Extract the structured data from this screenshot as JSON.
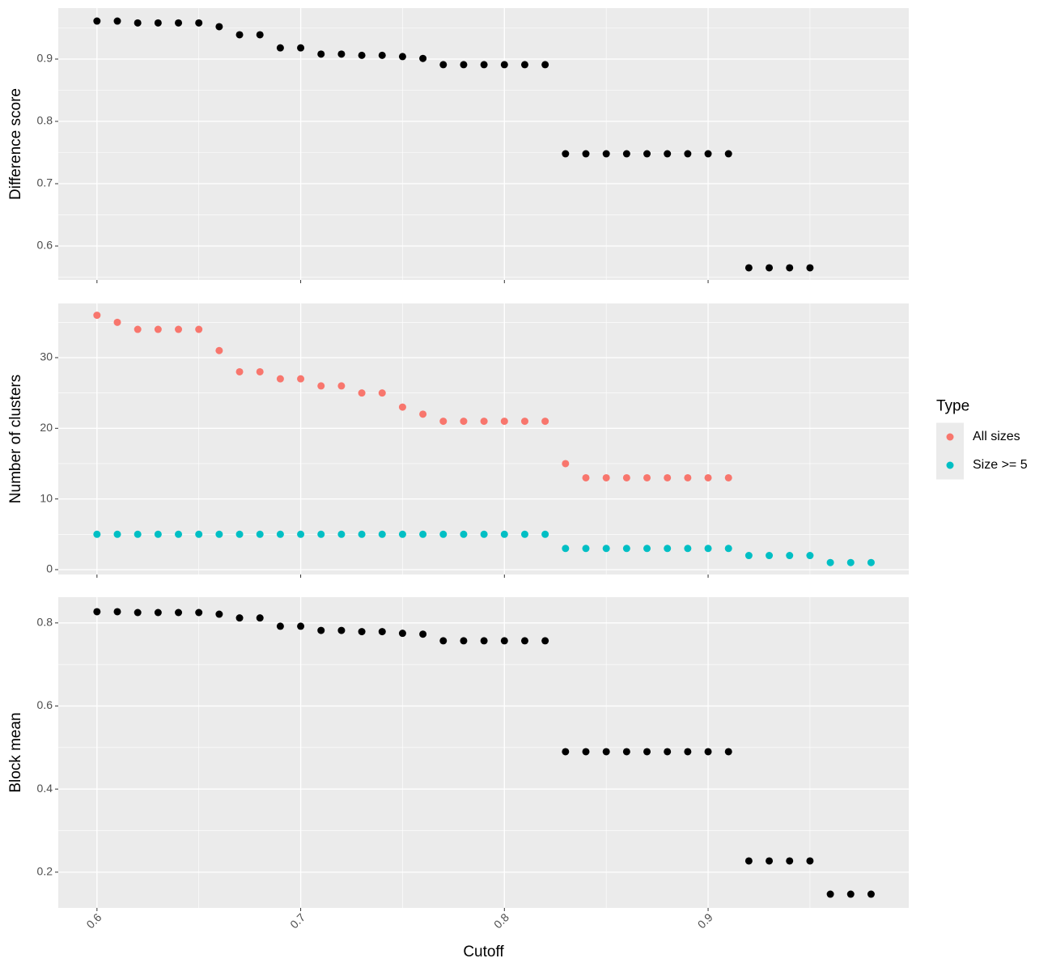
{
  "chart_data": [
    {
      "type": "scatter",
      "ylabel": "Difference score",
      "x": [
        0.6,
        0.61,
        0.62,
        0.63,
        0.64,
        0.65,
        0.66,
        0.67,
        0.68,
        0.69,
        0.7,
        0.71,
        0.72,
        0.73,
        0.74,
        0.75,
        0.76,
        0.77,
        0.78,
        0.79,
        0.8,
        0.81,
        0.82,
        0.83,
        0.84,
        0.85,
        0.86,
        0.87,
        0.88,
        0.89,
        0.9,
        0.91,
        0.92,
        0.93,
        0.94,
        0.95,
        0.96,
        0.97,
        0.98
      ],
      "series": [
        {
          "color": "#000000",
          "values": [
            0.961,
            0.961,
            0.958,
            0.958,
            0.958,
            0.958,
            0.952,
            0.939,
            0.939,
            0.918,
            0.918,
            0.908,
            0.908,
            0.906,
            0.906,
            0.904,
            0.901,
            0.891,
            0.891,
            0.891,
            0.891,
            0.891,
            0.891,
            0.748,
            0.748,
            0.748,
            0.748,
            0.748,
            0.748,
            0.748,
            0.748,
            0.748,
            0.565,
            0.565,
            0.565,
            0.565,
            null,
            null,
            null
          ]
        }
      ],
      "xlim": [
        0.581,
        0.9985
      ],
      "xticks": [
        0.6,
        0.7,
        0.8,
        0.9
      ],
      "ylim": [
        0.5455,
        0.9818
      ],
      "yticks": [
        0.6,
        0.7,
        0.8,
        0.9
      ],
      "grid": true
    },
    {
      "type": "scatter",
      "ylabel": "Number of clusters",
      "legend_title": "Type",
      "legend": "right",
      "x": [
        0.6,
        0.61,
        0.62,
        0.63,
        0.64,
        0.65,
        0.66,
        0.67,
        0.68,
        0.69,
        0.7,
        0.71,
        0.72,
        0.73,
        0.74,
        0.75,
        0.76,
        0.77,
        0.78,
        0.79,
        0.8,
        0.81,
        0.82,
        0.83,
        0.84,
        0.85,
        0.86,
        0.87,
        0.88,
        0.89,
        0.9,
        0.91,
        0.92,
        0.93,
        0.94,
        0.95,
        0.96,
        0.97,
        0.98
      ],
      "series": [
        {
          "name": "All sizes",
          "color": "#f8766d",
          "values": [
            36,
            35,
            34,
            34,
            34,
            34,
            31,
            28,
            28,
            27,
            27,
            26,
            26,
            25,
            25,
            23,
            22,
            21,
            21,
            21,
            21,
            21,
            21,
            15,
            13,
            13,
            13,
            13,
            13,
            13,
            13,
            13,
            null,
            null,
            null,
            null,
            null,
            null,
            null
          ]
        },
        {
          "name": "Size >= 5",
          "color": "#00bfc4",
          "values": [
            5,
            5,
            5,
            5,
            5,
            5,
            5,
            5,
            5,
            5,
            5,
            5,
            5,
            5,
            5,
            5,
            5,
            5,
            5,
            5,
            5,
            5,
            5,
            3,
            3,
            3,
            3,
            3,
            3,
            3,
            3,
            3,
            2,
            2,
            2,
            2,
            1,
            1,
            1
          ]
        }
      ],
      "xlim": [
        0.581,
        0.9985
      ],
      "xticks": [
        0.6,
        0.7,
        0.8,
        0.9
      ],
      "ylim": [
        -0.69,
        37.67
      ],
      "yticks": [
        0,
        10,
        20,
        30
      ],
      "grid": true
    },
    {
      "type": "scatter",
      "ylabel": "Block mean",
      "xlabel": "Cutoff",
      "x": [
        0.6,
        0.61,
        0.62,
        0.63,
        0.64,
        0.65,
        0.66,
        0.67,
        0.68,
        0.69,
        0.7,
        0.71,
        0.72,
        0.73,
        0.74,
        0.75,
        0.76,
        0.77,
        0.78,
        0.79,
        0.8,
        0.81,
        0.82,
        0.83,
        0.84,
        0.85,
        0.86,
        0.87,
        0.88,
        0.89,
        0.9,
        0.91,
        0.92,
        0.93,
        0.94,
        0.95,
        0.96,
        0.97,
        0.98
      ],
      "series": [
        {
          "color": "#000000",
          "values": [
            0.827,
            0.827,
            0.825,
            0.825,
            0.825,
            0.825,
            0.821,
            0.812,
            0.812,
            0.792,
            0.792,
            0.782,
            0.782,
            0.779,
            0.779,
            0.775,
            0.773,
            0.757,
            0.757,
            0.757,
            0.757,
            0.757,
            0.757,
            0.49,
            0.49,
            0.49,
            0.49,
            0.49,
            0.49,
            0.49,
            0.49,
            0.49,
            0.227,
            0.227,
            0.227,
            0.227,
            0.147,
            0.147,
            0.147
          ]
        }
      ],
      "xlim": [
        0.581,
        0.9985
      ],
      "xticks": [
        0.6,
        0.7,
        0.8,
        0.9
      ],
      "ylim": [
        0.114,
        0.862
      ],
      "yticks": [
        0.2,
        0.4,
        0.6,
        0.8
      ],
      "grid": true
    }
  ]
}
